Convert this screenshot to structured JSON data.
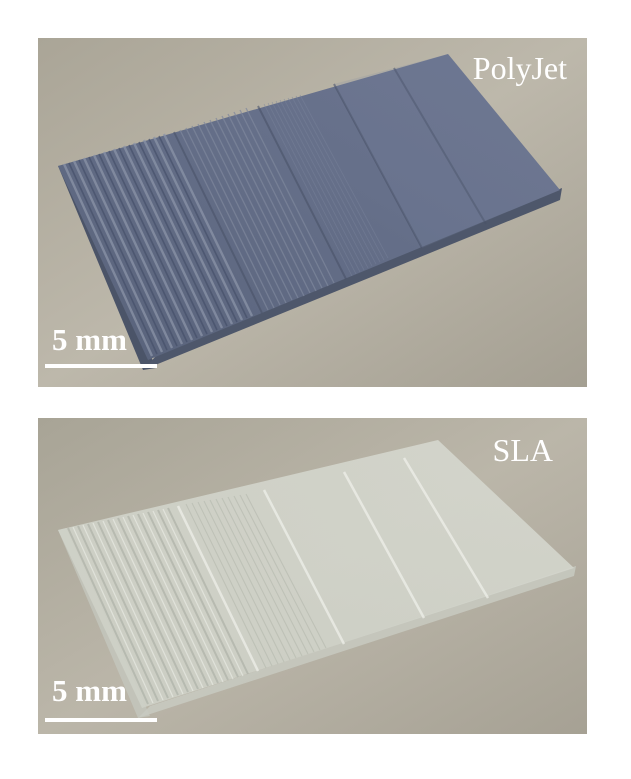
{
  "panels": [
    {
      "label": "PolyJet",
      "scale_text": "5 mm"
    },
    {
      "label": "SLA",
      "scale_text": "5 mm"
    }
  ],
  "colors": {
    "background_surface": "#b9b4a8",
    "polyjet_sample": "#5c6678",
    "sla_sample": "#d2d3c9",
    "text": "#ffffff"
  }
}
